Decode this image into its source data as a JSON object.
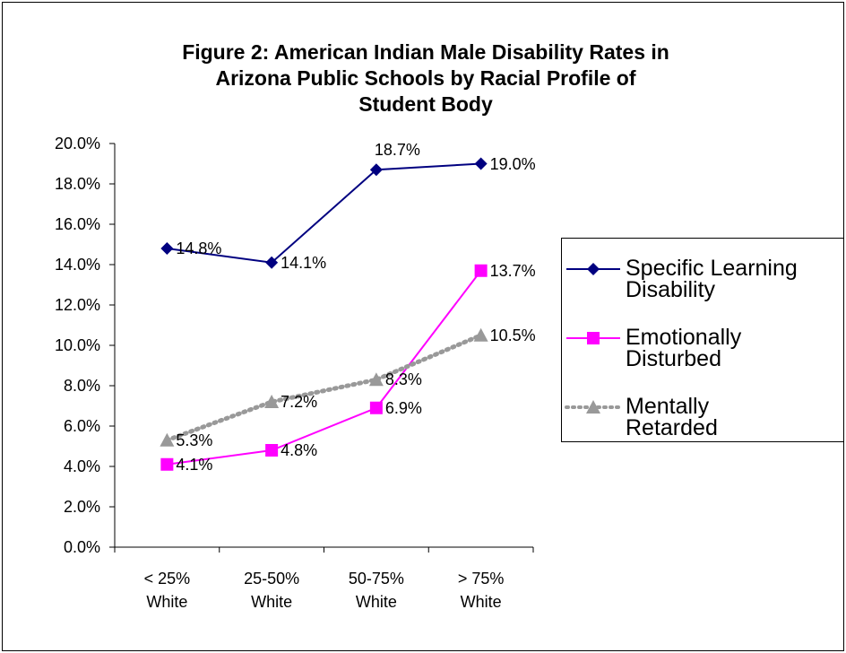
{
  "chart_data": {
    "type": "line",
    "title": "Figure 2: American Indian Male Disability Rates in\nArizona Public Schools by Racial Profile of\nStudent Body",
    "categories": [
      "< 25%\nWhite",
      "25-50%\nWhite",
      "50-75%\nWhite",
      "> 75%\nWhite"
    ],
    "series": [
      {
        "name": "Specific Learning\nDisability",
        "color": "#000080",
        "marker": "diamond",
        "line_style": "solid",
        "values": [
          14.8,
          14.1,
          18.7,
          19.0
        ],
        "value_labels": [
          "14.8%",
          "14.1%",
          "18.7%",
          "19.0%"
        ]
      },
      {
        "name": "Emotionally\nDisturbed",
        "color": "#ff00ff",
        "marker": "square",
        "line_style": "solid",
        "values": [
          4.1,
          4.8,
          6.9,
          13.7
        ],
        "value_labels": [
          "4.1%",
          "4.8%",
          "6.9%",
          "13.7%"
        ]
      },
      {
        "name": "Mentally\nRetarded",
        "color": "#999999",
        "marker": "triangle",
        "line_style": "dotted",
        "values": [
          5.3,
          7.2,
          8.3,
          10.5
        ],
        "value_labels": [
          "5.3%",
          "7.2%",
          "8.3%",
          "10.5%"
        ]
      }
    ],
    "ylim": [
      0,
      20
    ],
    "yticks": [
      {
        "value": 0,
        "label": "0.0%"
      },
      {
        "value": 2,
        "label": "2.0%"
      },
      {
        "value": 4,
        "label": "4.0%"
      },
      {
        "value": 6,
        "label": "6.0%"
      },
      {
        "value": 8,
        "label": "8.0%"
      },
      {
        "value": 10,
        "label": "10.0%"
      },
      {
        "value": 12,
        "label": "12.0%"
      },
      {
        "value": 14,
        "label": "14.0%"
      },
      {
        "value": 16,
        "label": "16.0%"
      },
      {
        "value": 18,
        "label": "18.0%"
      },
      {
        "value": 20,
        "label": "20.0%"
      }
    ],
    "grid": false,
    "legend": "right"
  }
}
